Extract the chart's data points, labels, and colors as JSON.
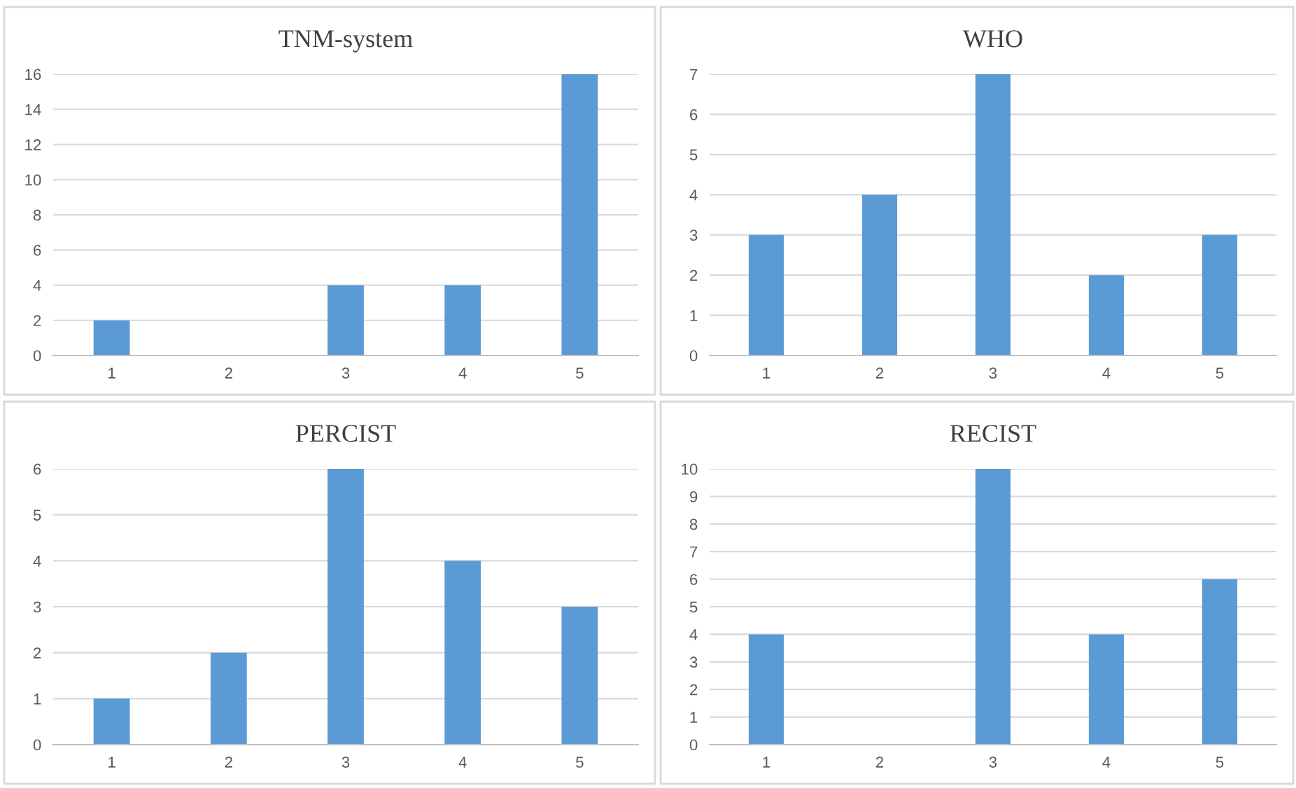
{
  "chart_data": [
    {
      "type": "bar",
      "title": "TNM-system",
      "categories": [
        "1",
        "2",
        "3",
        "4",
        "5"
      ],
      "values": [
        2,
        0,
        4,
        4,
        16
      ],
      "color": "#5b9bd5",
      "ylim": [
        0,
        16
      ],
      "yticks": [
        0,
        2,
        4,
        6,
        8,
        10,
        12,
        14,
        16
      ],
      "grid": "y"
    },
    {
      "type": "bar",
      "title": "WHO",
      "categories": [
        "1",
        "2",
        "3",
        "4",
        "5"
      ],
      "values": [
        3,
        4,
        7,
        2,
        3
      ],
      "color": "#5b9bd5",
      "ylim": [
        0,
        7
      ],
      "yticks": [
        0,
        1,
        2,
        3,
        4,
        5,
        6,
        7
      ],
      "grid": "y"
    },
    {
      "type": "bar",
      "title": "PERCIST",
      "categories": [
        "1",
        "2",
        "3",
        "4",
        "5"
      ],
      "values": [
        1,
        2,
        6,
        4,
        3
      ],
      "color": "#5b9bd5",
      "ylim": [
        0,
        6
      ],
      "yticks": [
        0,
        1,
        2,
        3,
        4,
        5,
        6
      ],
      "grid": "y"
    },
    {
      "type": "bar",
      "title": "RECIST",
      "categories": [
        "1",
        "2",
        "3",
        "4",
        "5"
      ],
      "values": [
        4,
        0,
        10,
        4,
        6
      ],
      "color": "#5b9bd5",
      "ylim": [
        0,
        10
      ],
      "yticks": [
        0,
        1,
        2,
        3,
        4,
        5,
        6,
        7,
        8,
        9,
        10
      ],
      "grid": "y"
    }
  ]
}
